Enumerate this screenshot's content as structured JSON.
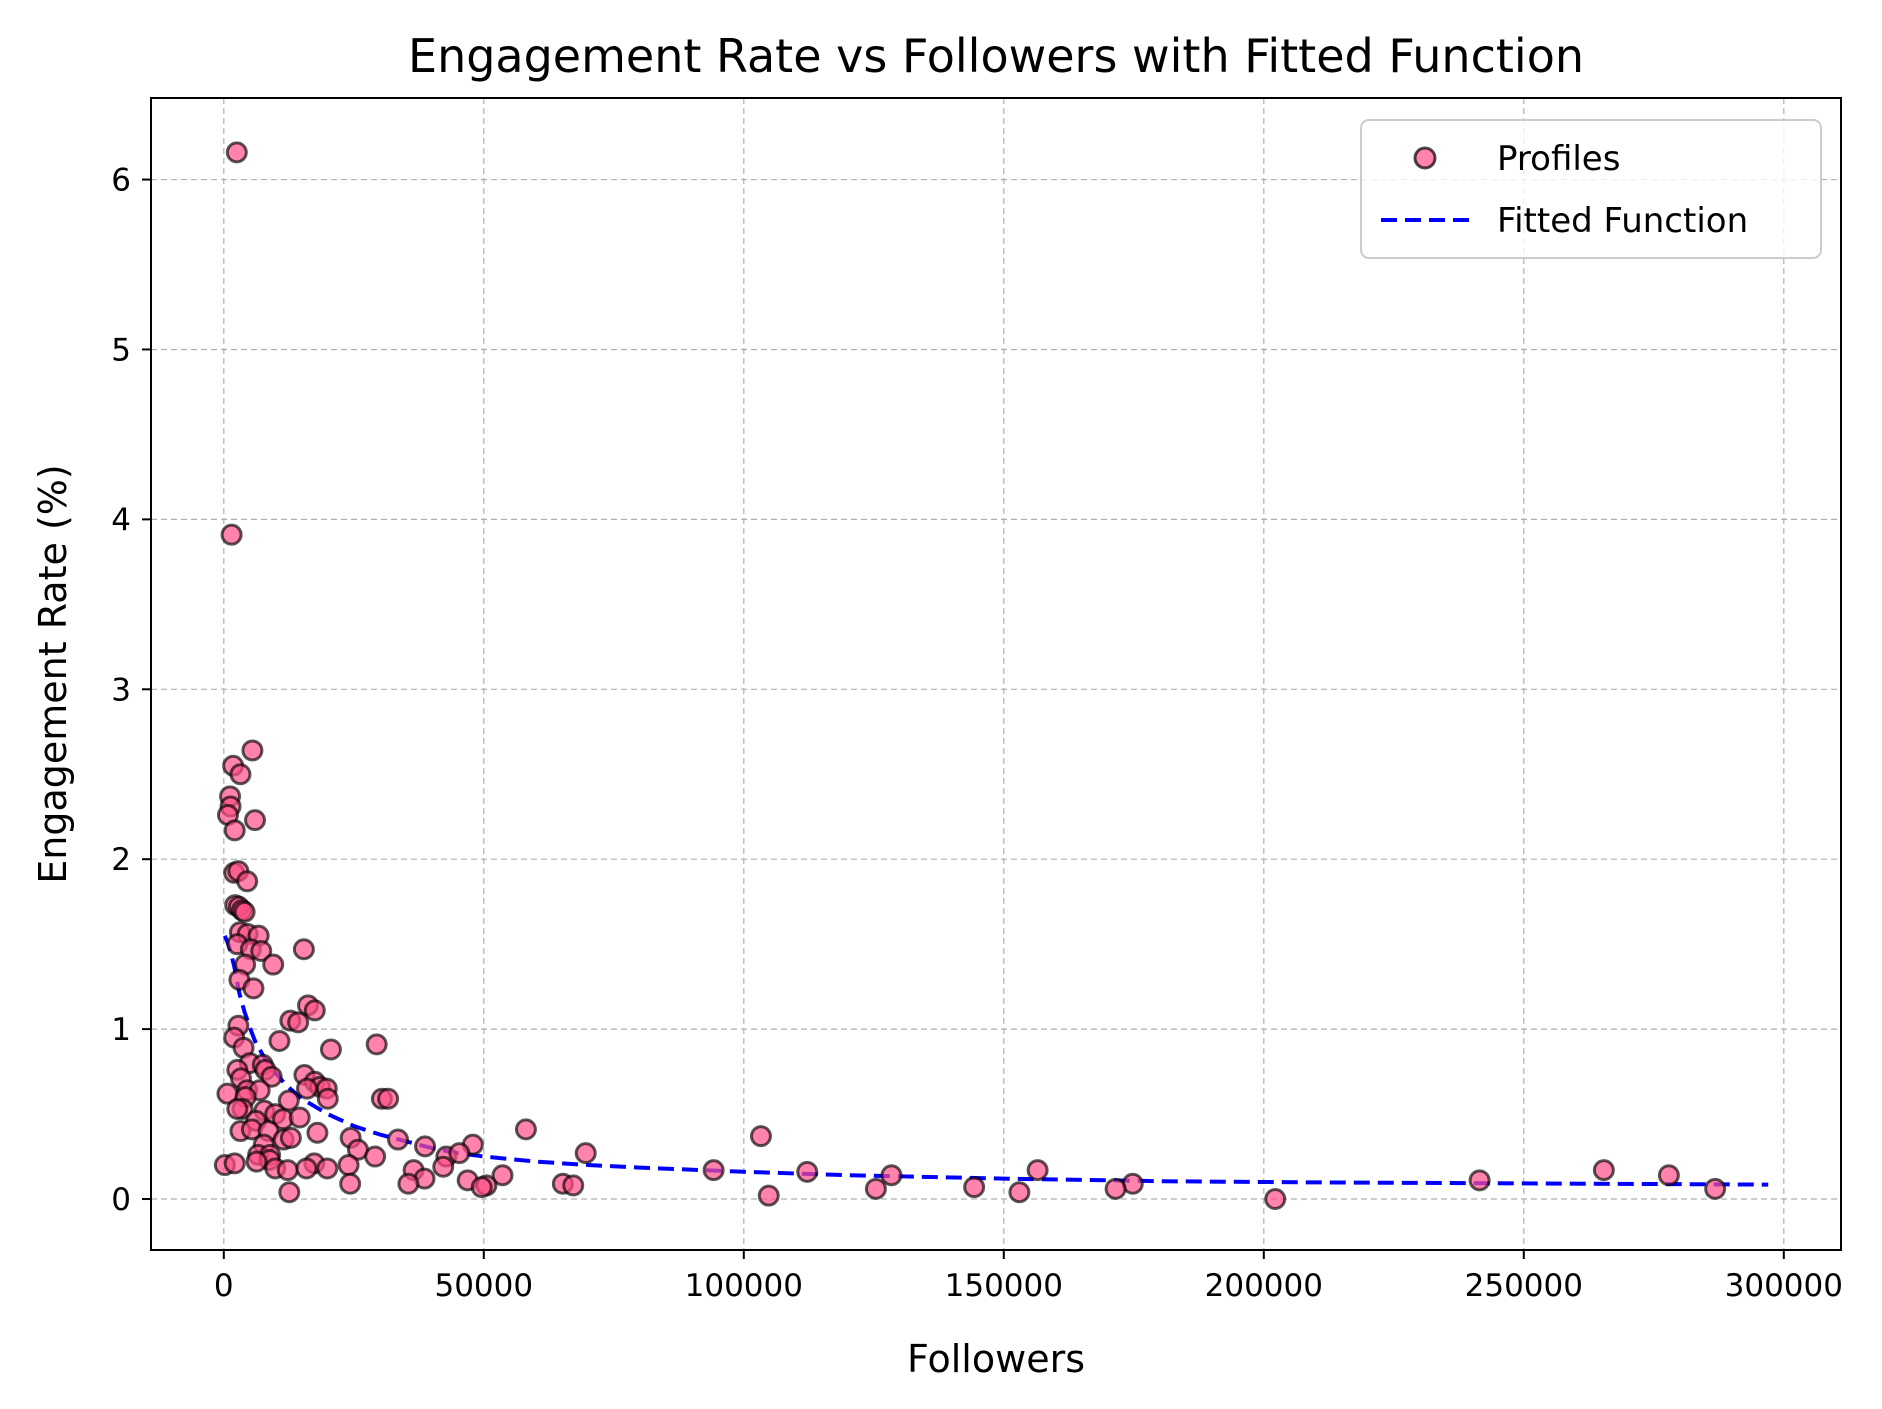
{
  "chart_data": {
    "type": "scatter",
    "title": "Engagement Rate vs Followers with Fitted Function",
    "xlabel": "Followers",
    "ylabel": "Engagement Rate (%)",
    "xlim": [
      -14000,
      311000
    ],
    "ylim": [
      -0.3,
      6.48
    ],
    "xticks": [
      0,
      50000,
      100000,
      150000,
      200000,
      250000,
      300000
    ],
    "xtick_labels": [
      "0",
      "50000",
      "100000",
      "150000",
      "200000",
      "250000",
      "300000"
    ],
    "yticks": [
      0,
      1,
      2,
      3,
      4,
      5,
      6
    ],
    "ytick_labels": [
      "0",
      "1",
      "2",
      "3",
      "4",
      "5",
      "6"
    ],
    "grid": true,
    "legend_position": "top-right",
    "colors": {
      "points": "#ff4f86",
      "point_edge": "#000000",
      "fit_line": "#0000ff",
      "grid": "#b0b0b0"
    },
    "series": [
      {
        "name": "Profiles",
        "kind": "scatter",
        "points": [
          [
            2500,
            6.16
          ],
          [
            1500,
            3.91
          ],
          [
            5500,
            2.64
          ],
          [
            1800,
            2.55
          ],
          [
            3200,
            2.5
          ],
          [
            1200,
            2.37
          ],
          [
            1300,
            2.31
          ],
          [
            800,
            2.26
          ],
          [
            2100,
            2.17
          ],
          [
            6000,
            2.23
          ],
          [
            2000,
            1.92
          ],
          [
            2800,
            1.93
          ],
          [
            4500,
            1.87
          ],
          [
            2200,
            1.73
          ],
          [
            2900,
            1.72
          ],
          [
            3500,
            1.7
          ],
          [
            4000,
            1.69
          ],
          [
            3100,
            1.57
          ],
          [
            4600,
            1.56
          ],
          [
            6700,
            1.55
          ],
          [
            2600,
            1.5
          ],
          [
            5200,
            1.47
          ],
          [
            7200,
            1.46
          ],
          [
            15400,
            1.47
          ],
          [
            4100,
            1.38
          ],
          [
            9500,
            1.38
          ],
          [
            3000,
            1.29
          ],
          [
            5700,
            1.24
          ],
          [
            16200,
            1.14
          ],
          [
            17500,
            1.11
          ],
          [
            2800,
            1.02
          ],
          [
            12800,
            1.05
          ],
          [
            14300,
            1.04
          ],
          [
            2000,
            0.95
          ],
          [
            10700,
            0.93
          ],
          [
            3800,
            0.89
          ],
          [
            20600,
            0.88
          ],
          [
            29400,
            0.91
          ],
          [
            5000,
            0.8
          ],
          [
            7500,
            0.79
          ],
          [
            2600,
            0.76
          ],
          [
            8000,
            0.76
          ],
          [
            15500,
            0.73
          ],
          [
            3300,
            0.71
          ],
          [
            9200,
            0.72
          ],
          [
            17500,
            0.69
          ],
          [
            18500,
            0.66
          ],
          [
            19800,
            0.65
          ],
          [
            4500,
            0.64
          ],
          [
            6900,
            0.64
          ],
          [
            16000,
            0.65
          ],
          [
            700,
            0.62
          ],
          [
            4200,
            0.6
          ],
          [
            12500,
            0.58
          ],
          [
            20000,
            0.59
          ],
          [
            30400,
            0.59
          ],
          [
            31600,
            0.59
          ],
          [
            3600,
            0.53
          ],
          [
            7800,
            0.52
          ],
          [
            9900,
            0.5
          ],
          [
            2600,
            0.53
          ],
          [
            6200,
            0.46
          ],
          [
            11400,
            0.47
          ],
          [
            14600,
            0.48
          ],
          [
            3200,
            0.4
          ],
          [
            5400,
            0.41
          ],
          [
            8600,
            0.4
          ],
          [
            18000,
            0.39
          ],
          [
            58100,
            0.41
          ],
          [
            103300,
            0.37
          ],
          [
            24400,
            0.36
          ],
          [
            33500,
            0.35
          ],
          [
            11500,
            0.35
          ],
          [
            12900,
            0.36
          ],
          [
            7700,
            0.32
          ],
          [
            38700,
            0.31
          ],
          [
            47900,
            0.32
          ],
          [
            25800,
            0.29
          ],
          [
            6600,
            0.26
          ],
          [
            8900,
            0.26
          ],
          [
            29100,
            0.25
          ],
          [
            42800,
            0.25
          ],
          [
            45300,
            0.27
          ],
          [
            69600,
            0.27
          ],
          [
            8800,
            0.23
          ],
          [
            17400,
            0.21
          ],
          [
            24000,
            0.2
          ],
          [
            200,
            0.2
          ],
          [
            2100,
            0.21
          ],
          [
            6300,
            0.22
          ],
          [
            9900,
            0.18
          ],
          [
            12300,
            0.17
          ],
          [
            15900,
            0.18
          ],
          [
            19900,
            0.18
          ],
          [
            36500,
            0.17
          ],
          [
            42200,
            0.19
          ],
          [
            94200,
            0.17
          ],
          [
            112200,
            0.16
          ],
          [
            156500,
            0.17
          ],
          [
            265400,
            0.17
          ],
          [
            128400,
            0.14
          ],
          [
            53600,
            0.14
          ],
          [
            38600,
            0.12
          ],
          [
            46900,
            0.11
          ],
          [
            277900,
            0.14
          ],
          [
            241500,
            0.11
          ],
          [
            174800,
            0.09
          ],
          [
            35500,
            0.09
          ],
          [
            24300,
            0.09
          ],
          [
            65200,
            0.09
          ],
          [
            67200,
            0.08
          ],
          [
            50500,
            0.08
          ],
          [
            49600,
            0.07
          ],
          [
            125400,
            0.06
          ],
          [
            144300,
            0.07
          ],
          [
            171500,
            0.06
          ],
          [
            286800,
            0.06
          ],
          [
            12600,
            0.04
          ],
          [
            104800,
            0.02
          ],
          [
            153000,
            0.04
          ],
          [
            202200,
            0.0
          ]
        ]
      },
      {
        "name": "Fitted Function",
        "kind": "line",
        "style": "dashed",
        "points": [
          [
            200,
            1.55
          ],
          [
            1000,
            1.49
          ],
          [
            2000,
            1.37
          ],
          [
            3000,
            1.21
          ],
          [
            4000,
            1.1
          ],
          [
            5000,
            1.01
          ],
          [
            6000,
            0.93
          ],
          [
            8000,
            0.82
          ],
          [
            10000,
            0.74
          ],
          [
            12000,
            0.67
          ],
          [
            15000,
            0.59
          ],
          [
            20000,
            0.5
          ],
          [
            25000,
            0.43
          ],
          [
            30000,
            0.38
          ],
          [
            35000,
            0.34
          ],
          [
            40000,
            0.3
          ],
          [
            45000,
            0.27
          ],
          [
            50000,
            0.25
          ],
          [
            60000,
            0.22
          ],
          [
            70000,
            0.2
          ],
          [
            80000,
            0.185
          ],
          [
            100000,
            0.16
          ],
          [
            120000,
            0.14
          ],
          [
            150000,
            0.12
          ],
          [
            180000,
            0.105
          ],
          [
            210000,
            0.098
          ],
          [
            250000,
            0.092
          ],
          [
            297000,
            0.085
          ]
        ]
      }
    ]
  }
}
